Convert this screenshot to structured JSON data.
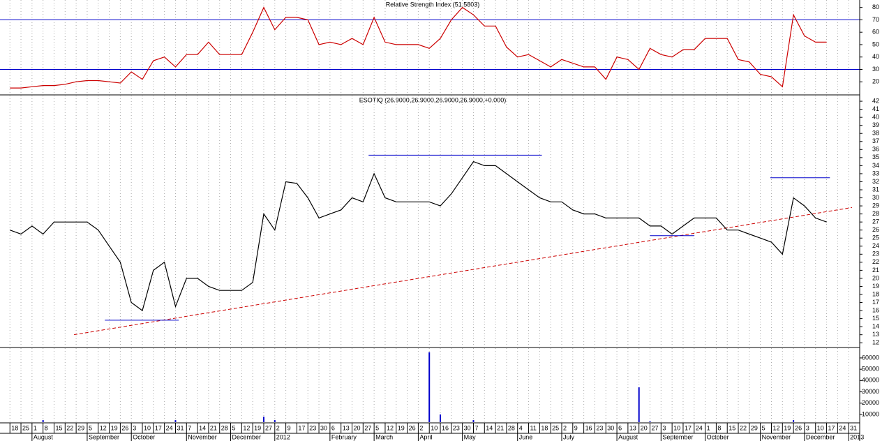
{
  "chart_data": [
    {
      "type": "line",
      "title": "Relative Strength Index (51.5803)",
      "x": [
        0,
        1,
        2,
        3,
        4,
        5,
        6,
        7,
        8,
        9,
        10,
        11,
        12,
        13,
        14,
        15,
        16,
        17,
        18,
        19,
        20,
        21,
        22,
        23,
        24,
        25,
        26,
        27,
        28,
        29,
        30,
        31,
        32,
        33,
        34,
        35,
        36,
        37,
        38,
        39,
        40,
        41,
        42,
        43,
        44,
        45,
        46,
        47,
        48,
        49,
        50,
        51,
        52,
        53,
        54,
        55,
        56,
        57,
        58,
        59,
        60,
        61,
        62,
        63,
        64,
        65,
        66,
        67,
        68,
        69,
        70,
        71,
        72,
        73,
        74
      ],
      "series": [
        {
          "color": "#cc0000",
          "values": [
            15,
            15,
            16,
            17,
            17,
            18,
            20,
            21,
            21,
            20,
            19,
            28,
            22,
            37,
            40,
            32,
            42,
            42,
            52,
            42,
            42,
            42,
            60,
            80,
            62,
            72,
            72,
            70,
            50,
            52,
            50,
            55,
            50,
            72,
            52,
            50,
            50,
            50,
            47,
            55,
            70,
            80,
            74,
            65,
            65,
            48,
            40,
            42,
            37,
            32,
            38,
            35,
            32,
            32,
            22,
            40,
            38,
            30,
            47,
            42,
            40,
            46,
            46,
            55,
            55,
            55,
            38,
            36,
            26,
            24,
            16,
            74,
            57,
            52,
            52
          ]
        }
      ],
      "hlines": [
        {
          "value": 70,
          "color": "#0000cc"
        },
        {
          "value": 30,
          "color": "#0000cc"
        }
      ],
      "xlim": [
        -0.9,
        77
      ],
      "ylim": [
        10,
        86
      ],
      "yticks": [
        20,
        30,
        40,
        50,
        60,
        70,
        80
      ]
    },
    {
      "type": "line",
      "title": "ESOTIQ (26.9000,26.9000,26.9000,26.9000,+0.000)",
      "x": [
        0,
        1,
        2,
        3,
        4,
        5,
        6,
        7,
        8,
        9,
        10,
        11,
        12,
        13,
        14,
        15,
        16,
        17,
        18,
        19,
        20,
        21,
        22,
        23,
        24,
        25,
        26,
        27,
        28,
        29,
        30,
        31,
        32,
        33,
        34,
        35,
        36,
        37,
        38,
        39,
        40,
        41,
        42,
        43,
        44,
        45,
        46,
        47,
        48,
        49,
        50,
        51,
        52,
        53,
        54,
        55,
        56,
        57,
        58,
        59,
        60,
        61,
        62,
        63,
        64,
        65,
        66,
        67,
        68,
        69,
        70,
        71,
        72,
        73,
        74
      ],
      "series": [
        {
          "color": "#000000",
          "values": [
            26,
            25.5,
            26.5,
            25.5,
            27,
            27,
            27,
            27,
            26,
            24,
            22,
            17,
            16,
            21,
            22,
            16.5,
            20,
            20,
            19,
            18.5,
            18.5,
            18.5,
            19.5,
            28,
            26,
            32,
            31.8,
            30,
            27.5,
            28,
            28.5,
            30,
            29.5,
            33,
            30,
            29.5,
            29.5,
            29.5,
            29.5,
            29,
            30.5,
            32.5,
            34.5,
            34,
            34,
            33,
            32,
            31,
            30,
            29.5,
            29.5,
            28.5,
            28,
            28,
            27.5,
            27.5,
            27.5,
            27.5,
            26.5,
            26.5,
            25.5,
            26.5,
            27.5,
            27.5,
            27.5,
            26,
            26,
            25.5,
            25,
            24.5,
            23,
            30,
            29,
            27.5,
            27
          ]
        }
      ],
      "lines": [
        {
          "x": [
            5.8,
            76.3
          ],
          "y": [
            13,
            28.8
          ],
          "color": "#cc0000",
          "dashed": true
        },
        {
          "x": [
            8.6,
            15.3
          ],
          "y": [
            14.8,
            14.8
          ],
          "color": "#0000cc"
        },
        {
          "x": [
            32.5,
            48.2
          ],
          "y": [
            35.3,
            35.3
          ],
          "color": "#0000cc"
        },
        {
          "x": [
            58,
            62
          ],
          "y": [
            25.3,
            25.3
          ],
          "color": "#0000cc"
        },
        {
          "x": [
            68.9,
            74.3
          ],
          "y": [
            32.5,
            32.5
          ],
          "color": "#0000cc"
        }
      ],
      "xlim": [
        -0.9,
        77
      ],
      "ylim": [
        11.5,
        42.7
      ],
      "yticks": [
        12,
        13,
        14,
        15,
        16,
        17,
        18,
        19,
        20,
        21,
        22,
        23,
        24,
        25,
        26,
        27,
        28,
        29,
        30,
        31,
        32,
        33,
        34,
        35,
        36,
        37,
        38,
        39,
        40,
        41,
        42
      ]
    },
    {
      "type": "bar",
      "color": "#0000cc",
      "grid": true,
      "x": [
        0,
        1,
        2,
        3,
        4,
        5,
        6,
        7,
        8,
        9,
        10,
        11,
        12,
        13,
        14,
        15,
        16,
        17,
        18,
        19,
        20,
        21,
        22,
        23,
        24,
        25,
        26,
        27,
        28,
        29,
        30,
        31,
        32,
        33,
        34,
        35,
        36,
        37,
        38,
        39,
        40,
        41,
        42,
        43,
        44,
        45,
        46,
        47,
        48,
        49,
        50,
        51,
        52,
        53,
        54,
        55,
        56,
        57,
        58,
        59,
        60,
        61,
        62,
        63,
        64,
        65,
        66,
        67,
        68,
        69,
        70,
        71,
        72,
        73,
        74
      ],
      "values": [
        2000,
        2000,
        2000,
        5000,
        2000,
        2000,
        2000,
        2000,
        2000,
        2000,
        2000,
        2000,
        2000,
        2000,
        2000,
        5000,
        2000,
        2000,
        2000,
        2000,
        2000,
        2000,
        2000,
        8000,
        5000,
        2000,
        2000,
        2000,
        2000,
        2000,
        2000,
        2000,
        2000,
        2000,
        2000,
        2000,
        2000,
        2000,
        65000,
        10000,
        2000,
        2000,
        5000,
        2000,
        2000,
        2000,
        2000,
        2000,
        2000,
        2000,
        2000,
        2000,
        2000,
        2000,
        2000,
        2000,
        2000,
        34000,
        4000,
        2000,
        2000,
        2000,
        2000,
        2000,
        2000,
        2000,
        2000,
        2000,
        2000,
        2000,
        2000,
        5000,
        2000,
        2000,
        2000
      ],
      "xlim": [
        -0.9,
        77
      ],
      "ylim": [
        3200,
        68600
      ],
      "yticks": [
        10000,
        20000,
        30000,
        40000,
        50000,
        60000
      ],
      "xticks": [
        {
          "value": 0,
          "label": "18"
        },
        {
          "value": 1,
          "label": "25"
        },
        {
          "value": 2,
          "label": "1"
        },
        {
          "value": 3,
          "label": "8"
        },
        {
          "value": 4,
          "label": "15"
        },
        {
          "value": 5,
          "label": "22"
        },
        {
          "value": 6,
          "label": "29"
        },
        {
          "value": 7,
          "label": "5"
        },
        {
          "value": 8,
          "label": "12"
        },
        {
          "value": 9,
          "label": "19"
        },
        {
          "value": 10,
          "label": "26"
        },
        {
          "value": 11,
          "label": "3"
        },
        {
          "value": 12,
          "label": "10"
        },
        {
          "value": 13,
          "label": "17"
        },
        {
          "value": 14,
          "label": "24"
        },
        {
          "value": 15,
          "label": "31"
        },
        {
          "value": 16,
          "label": "7"
        },
        {
          "value": 17,
          "label": "14"
        },
        {
          "value": 18,
          "label": "21"
        },
        {
          "value": 19,
          "label": "28"
        },
        {
          "value": 20,
          "label": "5"
        },
        {
          "value": 21,
          "label": "12"
        },
        {
          "value": 22,
          "label": "19"
        },
        {
          "value": 23,
          "label": "27"
        },
        {
          "value": 24,
          "label": "2"
        },
        {
          "value": 25,
          "label": "9"
        },
        {
          "value": 26,
          "label": "17"
        },
        {
          "value": 27,
          "label": "23"
        },
        {
          "value": 28,
          "label": "30"
        },
        {
          "value": 29,
          "label": "6"
        },
        {
          "value": 30,
          "label": "13"
        },
        {
          "value": 31,
          "label": "20"
        },
        {
          "value": 32,
          "label": "27"
        },
        {
          "value": 33,
          "label": "5"
        },
        {
          "value": 34,
          "label": "12"
        },
        {
          "value": 35,
          "label": "19"
        },
        {
          "value": 36,
          "label": "26"
        },
        {
          "value": 37,
          "label": "2"
        },
        {
          "value": 38,
          "label": "10"
        },
        {
          "value": 39,
          "label": "16"
        },
        {
          "value": 40,
          "label": "23"
        },
        {
          "value": 41,
          "label": "30"
        },
        {
          "value": 42,
          "label": "7"
        },
        {
          "value": 43,
          "label": "14"
        },
        {
          "value": 44,
          "label": "21"
        },
        {
          "value": 45,
          "label": "28"
        },
        {
          "value": 46,
          "label": "4"
        },
        {
          "value": 47,
          "label": "11"
        },
        {
          "value": 48,
          "label": "18"
        },
        {
          "value": 49,
          "label": "25"
        },
        {
          "value": 50,
          "label": "2"
        },
        {
          "value": 51,
          "label": "9"
        },
        {
          "value": 52,
          "label": "16"
        },
        {
          "value": 53,
          "label": "23"
        },
        {
          "value": 54,
          "label": "30"
        },
        {
          "value": 55,
          "label": "6"
        },
        {
          "value": 56,
          "label": "13"
        },
        {
          "value": 57,
          "label": "20"
        },
        {
          "value": 58,
          "label": "27"
        },
        {
          "value": 59,
          "label": "3"
        },
        {
          "value": 60,
          "label": "10"
        },
        {
          "value": 61,
          "label": "17"
        },
        {
          "value": 62,
          "label": "24"
        },
        {
          "value": 63,
          "label": "1"
        },
        {
          "value": 64,
          "label": "8"
        },
        {
          "value": 65,
          "label": "15"
        },
        {
          "value": 66,
          "label": "22"
        },
        {
          "value": 67,
          "label": "29"
        },
        {
          "value": 68,
          "label": "5"
        },
        {
          "value": 69,
          "label": "12"
        },
        {
          "value": 70,
          "label": "19"
        },
        {
          "value": 71,
          "label": "26"
        },
        {
          "value": 72,
          "label": "3"
        },
        {
          "value": 73,
          "label": "10"
        },
        {
          "value": 74,
          "label": "17"
        },
        {
          "value": 75,
          "label": "24"
        },
        {
          "value": 76,
          "label": "31"
        }
      ],
      "month_ticks": [
        {
          "value": 2,
          "label": "August"
        },
        {
          "value": 7,
          "label": "September"
        },
        {
          "value": 11,
          "label": "October"
        },
        {
          "value": 16,
          "label": "November"
        },
        {
          "value": 20,
          "label": "December"
        },
        {
          "value": 24,
          "label": "2012"
        },
        {
          "value": 29,
          "label": "February"
        },
        {
          "value": 33,
          "label": "March"
        },
        {
          "value": 37,
          "label": "April"
        },
        {
          "value": 41,
          "label": "May"
        },
        {
          "value": 46,
          "label": "June"
        },
        {
          "value": 50,
          "label": "July"
        },
        {
          "value": 55,
          "label": "August"
        },
        {
          "value": 59,
          "label": "September"
        },
        {
          "value": 63,
          "label": "October"
        },
        {
          "value": 68,
          "label": "November"
        },
        {
          "value": 72,
          "label": "December"
        },
        {
          "value": 76,
          "label": "2013"
        }
      ]
    }
  ]
}
